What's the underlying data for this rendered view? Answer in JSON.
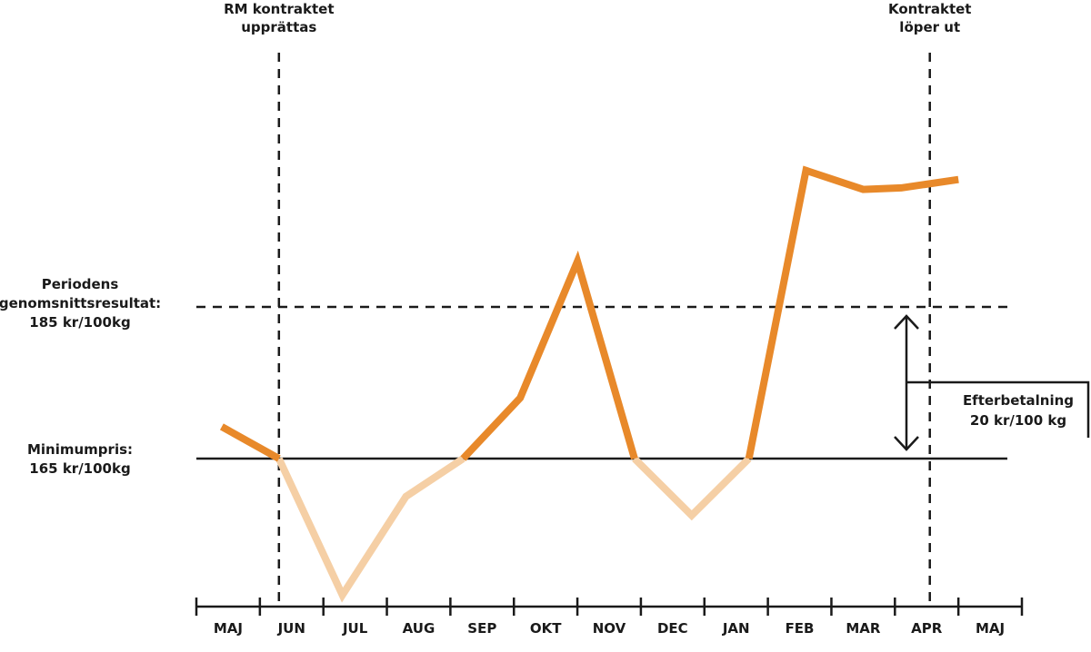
{
  "chart_data": {
    "type": "line",
    "title": "",
    "xlabel": "",
    "ylabel": "",
    "categories": [
      "MAJ",
      "JUN",
      "JUL",
      "AUG",
      "SEP",
      "OKT",
      "NOV",
      "DEC",
      "JAN",
      "FEB",
      "MAR",
      "APR",
      "MAJ"
    ],
    "series": [
      {
        "values": [
          [
            0.4,
            169.2
          ],
          [
            1.3,
            165.0
          ],
          [
            2.3,
            147.0
          ],
          [
            3.3,
            160.0
          ],
          [
            4.2,
            165.0
          ],
          [
            5.1,
            173.0
          ],
          [
            6.0,
            191.0
          ],
          [
            6.9,
            165.0
          ],
          [
            7.8,
            157.5
          ],
          [
            8.7,
            165.0
          ],
          [
            9.6,
            203.0
          ],
          [
            10.5,
            200.5
          ],
          [
            11.1,
            200.7
          ],
          [
            12.0,
            201.8
          ]
        ]
      }
    ],
    "colors": {
      "above_min": "#e8892a",
      "below_min": "#f5cfa5",
      "lines": "#1a1a1a"
    },
    "reference_lines": [
      {
        "value": 185,
        "style": "dashed",
        "label_lines": [
          "Periodens",
          "genomsnittsresultat:",
          "185 kr/100kg"
        ]
      },
      {
        "value": 165,
        "style": "solid",
        "label_lines": [
          "Minimumpris:",
          "165 kr/100kg"
        ]
      }
    ],
    "events": [
      {
        "x": 1.3,
        "label_lines": [
          "RM kontraktet",
          "upprättas"
        ]
      },
      {
        "x": 11.55,
        "label_lines": [
          "Kontraktet",
          "löper ut"
        ]
      }
    ],
    "annotation": {
      "label_lines": [
        "Efterbetalning",
        "20 kr/100 kg"
      ],
      "from": 165,
      "to": 185
    },
    "ylim": [
      143,
      210
    ],
    "grid": false,
    "legend": "none"
  }
}
